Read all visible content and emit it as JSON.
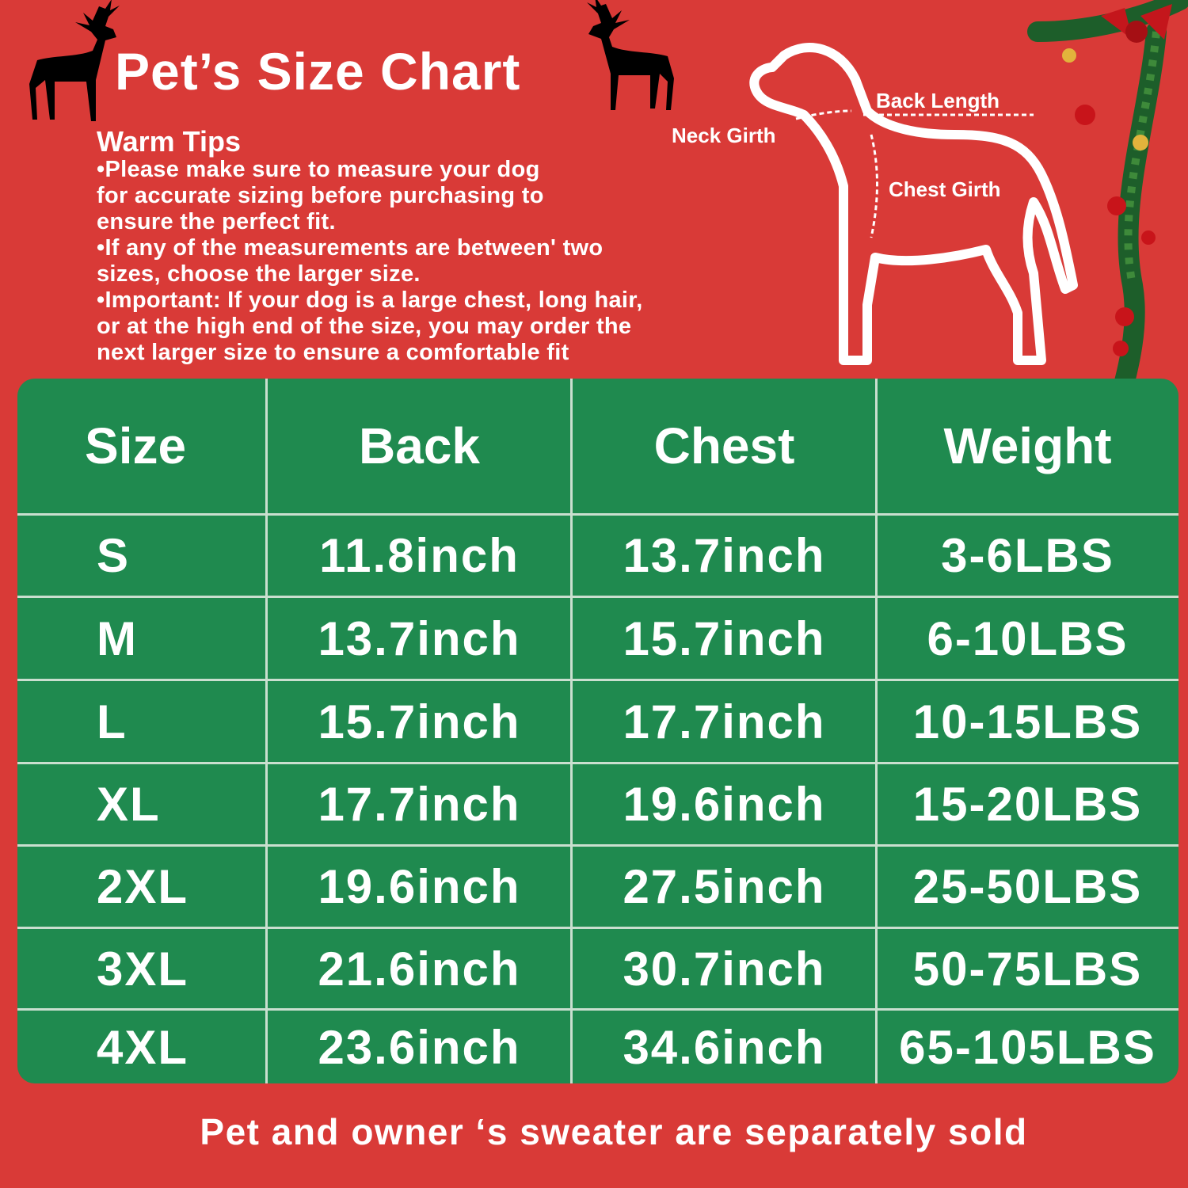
{
  "title": "Pet’s Size Chart",
  "warm_tips": {
    "heading": "Warm Tips",
    "items": [
      "•Please make sure to measure your dog\nfor accurate sizing before purchasing to\nensure the perfect fit.",
      "•If any of the measurements are between' two\nsizes, choose the larger size.",
      "•Important: If your dog is a large chest, long hair,\n or at the high end of the size, you may order the\nnext larger size to ensure a comfortable fit"
    ]
  },
  "diagram": {
    "neck": "Neck Girth",
    "back": "Back Length",
    "chest": "Chest Girth"
  },
  "table": {
    "headers": [
      "Size",
      "Back",
      "Chest",
      "Weight"
    ],
    "rows": [
      [
        "S",
        "11.8inch",
        "13.7inch",
        "3-6LBS"
      ],
      [
        "M",
        "13.7inch",
        "15.7inch",
        "6-10LBS"
      ],
      [
        "L",
        "15.7inch",
        "17.7inch",
        "10-15LBS"
      ],
      [
        "XL",
        "17.7inch",
        "19.6inch",
        "15-20LBS"
      ],
      [
        "2XL",
        "19.6inch",
        "27.5inch",
        "25-50LBS"
      ],
      [
        "3XL",
        "21.6inch",
        "30.7inch",
        "50-75LBS"
      ],
      [
        "4XL",
        "23.6inch",
        "34.6inch",
        "65-105LBS"
      ]
    ]
  },
  "footer": "Pet and owner ‘s sweater are separately sold",
  "colors": {
    "background": "#d93a37",
    "table": "#1f8a4f",
    "text": "#ffffff"
  },
  "icons": [
    "reindeer-silhouette",
    "dog-outline",
    "christmas-garland"
  ]
}
